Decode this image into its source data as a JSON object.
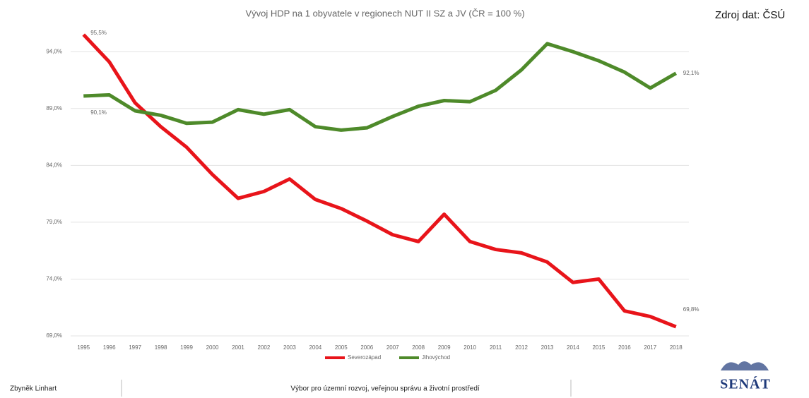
{
  "source": "Zdroj dat: ČSÚ",
  "footer": {
    "author": "Zbyněk Linhart",
    "committee": "Výbor pro územní rozvoj, veřejnou správu a životní prostředí",
    "logo": "SENÁT"
  },
  "chart_data": {
    "type": "line",
    "title": "Vývoj HDP na 1 obyvatele v regionech NUT II SZ a JV (ČR = 100 %)",
    "categories": [
      "1995",
      "1996",
      "1997",
      "1998",
      "1999",
      "2000",
      "2001",
      "2002",
      "2003",
      "2004",
      "2005",
      "2006",
      "2007",
      "2008",
      "2009",
      "2010",
      "2011",
      "2012",
      "2013",
      "2014",
      "2015",
      "2016",
      "2017",
      "2018"
    ],
    "ylim": [
      69,
      96
    ],
    "yticks": [
      {
        "value": 69,
        "label": "69,0%"
      },
      {
        "value": 74,
        "label": "74,0%"
      },
      {
        "value": 79,
        "label": "79,0%"
      },
      {
        "value": 84,
        "label": "84,0%"
      },
      {
        "value": 89,
        "label": "89,0%"
      },
      {
        "value": 94,
        "label": "94,0%"
      }
    ],
    "grid": true,
    "legend": "bottom",
    "series": [
      {
        "name": "Severozápad",
        "color": "#e8141a",
        "values": [
          95.5,
          93.1,
          89.5,
          87.4,
          85.6,
          83.2,
          81.1,
          81.7,
          82.8,
          81.0,
          80.2,
          79.1,
          77.9,
          77.3,
          79.7,
          77.3,
          76.6,
          76.3,
          75.5,
          73.7,
          74.0,
          71.2,
          70.7,
          69.8
        ],
        "value_labels": [
          "95,5%",
          null,
          null,
          null,
          null,
          null,
          null,
          null,
          null,
          null,
          null,
          null,
          null,
          null,
          null,
          null,
          null,
          null,
          null,
          null,
          null,
          null,
          null,
          "69,8%"
        ]
      },
      {
        "name": "Jihovýchod",
        "color": "#4e8a2a",
        "values": [
          90.1,
          90.2,
          88.8,
          88.4,
          87.7,
          87.8,
          88.9,
          88.5,
          88.9,
          87.4,
          87.1,
          87.3,
          88.3,
          89.2,
          89.7,
          89.6,
          90.6,
          92.4,
          94.7,
          94.0,
          93.2,
          92.2,
          90.8,
          92.1
        ],
        "value_labels": [
          "90,1%",
          null,
          null,
          null,
          null,
          null,
          null,
          null,
          null,
          null,
          null,
          null,
          null,
          null,
          null,
          null,
          null,
          null,
          null,
          null,
          null,
          null,
          null,
          "92,1%"
        ]
      }
    ]
  }
}
